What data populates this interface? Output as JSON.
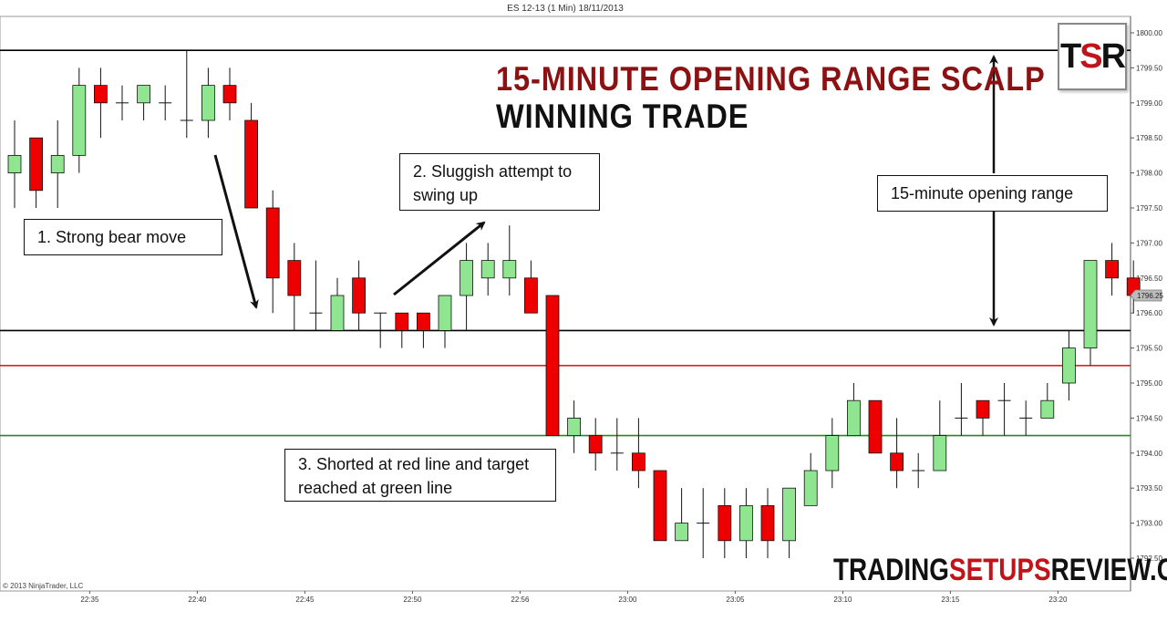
{
  "chart_header": "ES 12-13 (1 Min)  18/11/2013",
  "headline": {
    "line1": "15-MINUTE OPENING RANGE SCALP",
    "line2": "WINNING TRADE"
  },
  "callouts": {
    "c1": "1. Strong bear move",
    "c2": "2. Sluggish  attempt to swing  up",
    "c3": "3. Shorted at red line and target reached at green line",
    "c4": "15-minute opening range"
  },
  "logo": {
    "t": "T",
    "s": "S",
    "r": "R"
  },
  "brand": {
    "part1": "TRADING",
    "part2": "SETUPS",
    "part3": "REVIEW.COM"
  },
  "copyright": "© 2013 NinjaTrader, LLC",
  "colors": {
    "bull": "#90e690",
    "bear": "#ee0000",
    "range_line": "#000000",
    "entry_line": "#dd2222",
    "target_line": "#228b22",
    "headline_red": "#8b1113"
  },
  "chart_data": {
    "type": "candlestick",
    "title": "ES 12-13 (1 Min)  18/11/2013",
    "ylim": [
      1792.25,
      1800.25
    ],
    "y_ticks": [
      "1800.00",
      "1799.50",
      "1799.00",
      "1798.50",
      "1798.00",
      "1797.50",
      "1797.00",
      "1796.50",
      "1796.00",
      "1795.50",
      "1795.00",
      "1794.50",
      "1794.00",
      "1793.50",
      "1793.00",
      "1792.50"
    ],
    "x_ticks": [
      "22:35",
      "22:40",
      "22:45",
      "22:50",
      "22:56",
      "23:00",
      "23:05",
      "23:10",
      "23:15",
      "23:20"
    ],
    "last_price_label": "1796.25",
    "horizontal_lines": [
      {
        "name": "range_high",
        "value": 1799.75,
        "color": "#000000"
      },
      {
        "name": "range_low",
        "value": 1795.75,
        "color": "#000000"
      },
      {
        "name": "entry",
        "value": 1795.25,
        "color": "#dd2222"
      },
      {
        "name": "target",
        "value": 1794.25,
        "color": "#228b22"
      }
    ],
    "candles": [
      {
        "o": 1798.0,
        "h": 1798.75,
        "l": 1797.5,
        "c": 1798.25
      },
      {
        "o": 1798.5,
        "h": 1798.5,
        "l": 1797.5,
        "c": 1797.75
      },
      {
        "o": 1798.0,
        "h": 1798.75,
        "l": 1797.5,
        "c": 1798.25
      },
      {
        "o": 1798.25,
        "h": 1799.5,
        "l": 1798.0,
        "c": 1799.25
      },
      {
        "o": 1799.25,
        "h": 1799.5,
        "l": 1798.5,
        "c": 1799.0
      },
      {
        "o": 1799.0,
        "h": 1799.25,
        "l": 1798.75,
        "c": 1799.0
      },
      {
        "o": 1799.0,
        "h": 1799.25,
        "l": 1798.75,
        "c": 1799.25
      },
      {
        "o": 1799.0,
        "h": 1799.25,
        "l": 1798.75,
        "c": 1799.0
      },
      {
        "o": 1798.75,
        "h": 1799.75,
        "l": 1798.5,
        "c": 1798.75
      },
      {
        "o": 1798.75,
        "h": 1799.5,
        "l": 1798.5,
        "c": 1799.25
      },
      {
        "o": 1799.25,
        "h": 1799.5,
        "l": 1798.75,
        "c": 1799.0
      },
      {
        "o": 1798.75,
        "h": 1799.0,
        "l": 1797.5,
        "c": 1797.5
      },
      {
        "o": 1797.5,
        "h": 1797.75,
        "l": 1796.0,
        "c": 1796.5
      },
      {
        "o": 1796.75,
        "h": 1797.0,
        "l": 1795.75,
        "c": 1796.25
      },
      {
        "o": 1796.0,
        "h": 1796.75,
        "l": 1795.75,
        "c": 1796.0
      },
      {
        "o": 1795.75,
        "h": 1796.5,
        "l": 1795.75,
        "c": 1796.25
      },
      {
        "o": 1796.5,
        "h": 1796.75,
        "l": 1795.75,
        "c": 1796.0
      },
      {
        "o": 1796.0,
        "h": 1796.0,
        "l": 1795.5,
        "c": 1796.0
      },
      {
        "o": 1796.0,
        "h": 1796.0,
        "l": 1795.5,
        "c": 1795.75
      },
      {
        "o": 1796.0,
        "h": 1796.0,
        "l": 1795.5,
        "c": 1795.75
      },
      {
        "o": 1795.75,
        "h": 1796.25,
        "l": 1795.5,
        "c": 1796.25
      },
      {
        "o": 1796.25,
        "h": 1797.0,
        "l": 1795.75,
        "c": 1796.75
      },
      {
        "o": 1796.5,
        "h": 1797.0,
        "l": 1796.25,
        "c": 1796.75
      },
      {
        "o": 1796.5,
        "h": 1797.25,
        "l": 1796.25,
        "c": 1796.75
      },
      {
        "o": 1796.5,
        "h": 1796.75,
        "l": 1796.0,
        "c": 1796.0
      },
      {
        "o": 1796.25,
        "h": 1796.25,
        "l": 1794.25,
        "c": 1794.25
      },
      {
        "o": 1794.25,
        "h": 1794.75,
        "l": 1794.0,
        "c": 1794.5
      },
      {
        "o": 1794.25,
        "h": 1794.5,
        "l": 1793.75,
        "c": 1794.0
      },
      {
        "o": 1794.0,
        "h": 1794.5,
        "l": 1793.75,
        "c": 1794.0
      },
      {
        "o": 1794.0,
        "h": 1794.5,
        "l": 1793.5,
        "c": 1793.75
      },
      {
        "o": 1793.75,
        "h": 1793.75,
        "l": 1792.75,
        "c": 1792.75
      },
      {
        "o": 1792.75,
        "h": 1793.5,
        "l": 1792.75,
        "c": 1793.0
      },
      {
        "o": 1793.0,
        "h": 1793.5,
        "l": 1792.5,
        "c": 1793.0
      },
      {
        "o": 1793.25,
        "h": 1793.5,
        "l": 1792.5,
        "c": 1792.75
      },
      {
        "o": 1792.75,
        "h": 1793.5,
        "l": 1792.5,
        "c": 1793.25
      },
      {
        "o": 1793.25,
        "h": 1793.5,
        "l": 1792.5,
        "c": 1792.75
      },
      {
        "o": 1792.75,
        "h": 1793.5,
        "l": 1792.5,
        "c": 1793.5
      },
      {
        "o": 1793.25,
        "h": 1794.0,
        "l": 1793.25,
        "c": 1793.75
      },
      {
        "o": 1793.75,
        "h": 1794.5,
        "l": 1793.5,
        "c": 1794.25
      },
      {
        "o": 1794.25,
        "h": 1795.0,
        "l": 1794.25,
        "c": 1794.75
      },
      {
        "o": 1794.75,
        "h": 1794.75,
        "l": 1794.0,
        "c": 1794.0
      },
      {
        "o": 1794.0,
        "h": 1794.5,
        "l": 1793.5,
        "c": 1793.75
      },
      {
        "o": 1793.75,
        "h": 1794.0,
        "l": 1793.5,
        "c": 1793.75
      },
      {
        "o": 1793.75,
        "h": 1794.75,
        "l": 1793.75,
        "c": 1794.25
      },
      {
        "o": 1794.5,
        "h": 1795.0,
        "l": 1794.25,
        "c": 1794.5
      },
      {
        "o": 1794.75,
        "h": 1794.75,
        "l": 1794.25,
        "c": 1794.5
      },
      {
        "o": 1794.75,
        "h": 1795.0,
        "l": 1794.25,
        "c": 1794.75
      },
      {
        "o": 1794.5,
        "h": 1794.75,
        "l": 1794.25,
        "c": 1794.5
      },
      {
        "o": 1794.5,
        "h": 1795.0,
        "l": 1794.5,
        "c": 1794.75
      },
      {
        "o": 1795.0,
        "h": 1795.75,
        "l": 1794.75,
        "c": 1795.5
      },
      {
        "o": 1795.5,
        "h": 1796.75,
        "l": 1795.25,
        "c": 1796.75
      },
      {
        "o": 1796.75,
        "h": 1797.0,
        "l": 1796.25,
        "c": 1796.5
      },
      {
        "o": 1796.5,
        "h": 1796.75,
        "l": 1796.0,
        "c": 1796.25
      }
    ]
  }
}
